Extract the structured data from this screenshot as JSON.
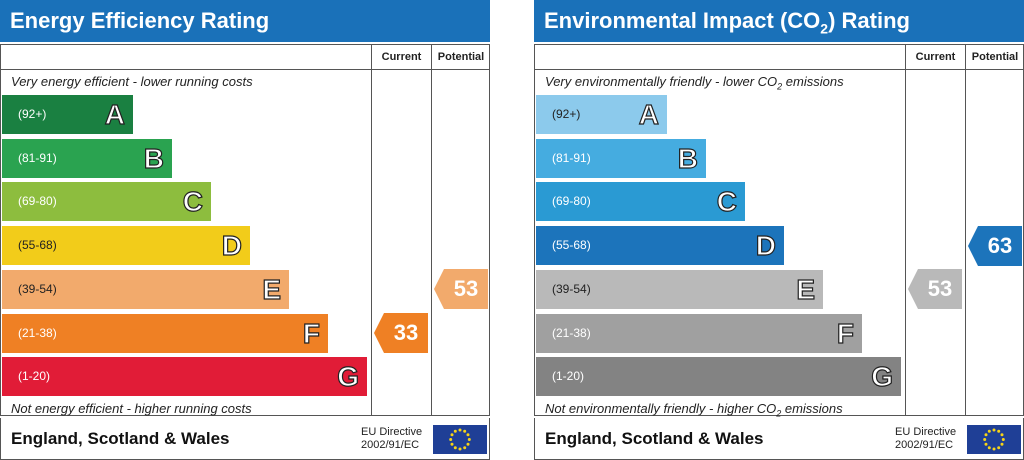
{
  "chart_data": [
    {
      "type": "bar",
      "title": "Energy Efficiency Rating",
      "columns": {
        "current": "Current",
        "potential": "Potential"
      },
      "top_note": "Very energy efficient - lower running costs",
      "bottom_note": "Not energy efficient - higher running costs",
      "bands": [
        {
          "range": "(92+)",
          "letter": "A",
          "color": "#1a8041"
        },
        {
          "range": "(81-91)",
          "letter": "B",
          "color": "#2aa350"
        },
        {
          "range": "(69-80)",
          "letter": "C",
          "color": "#8dbd3e"
        },
        {
          "range": "(55-68)",
          "letter": "D",
          "color": "#f2cc1a"
        },
        {
          "range": "(39-54)",
          "letter": "E",
          "color": "#f2aa6c"
        },
        {
          "range": "(21-38)",
          "letter": "F",
          "color": "#ef8024"
        },
        {
          "range": "(1-20)",
          "letter": "G",
          "color": "#e11c37"
        }
      ],
      "current": {
        "value": 33,
        "band": "F",
        "color": "#ef8024"
      },
      "potential": {
        "value": 53,
        "band": "E",
        "color": "#f2aa6c"
      },
      "region": "England, Scotland & Wales",
      "directive": [
        "EU Directive",
        "2002/91/EC"
      ]
    },
    {
      "type": "bar",
      "title": "Environmental Impact (CO2) Rating",
      "columns": {
        "current": "Current",
        "potential": "Potential"
      },
      "top_note": "Very environmentally friendly - lower CO2 emissions",
      "bottom_note": "Not environmentally friendly - higher CO2 emissions",
      "bands": [
        {
          "range": "(92+)",
          "letter": "A",
          "color": "#8ccaec"
        },
        {
          "range": "(81-91)",
          "letter": "B",
          "color": "#45ace0"
        },
        {
          "range": "(69-80)",
          "letter": "C",
          "color": "#2a9ad3"
        },
        {
          "range": "(55-68)",
          "letter": "D",
          "color": "#1c74bb"
        },
        {
          "range": "(39-54)",
          "letter": "E",
          "color": "#b9b9b9"
        },
        {
          "range": "(21-38)",
          "letter": "F",
          "color": "#a0a0a0"
        },
        {
          "range": "(1-20)",
          "letter": "G",
          "color": "#838383"
        }
      ],
      "current": {
        "value": 53,
        "band": "E",
        "color": "#b9b9b9"
      },
      "potential": {
        "value": 63,
        "band": "D",
        "color": "#1c74bb"
      },
      "region": "England, Scotland & Wales",
      "directive": [
        "EU Directive",
        "2002/91/EC"
      ]
    }
  ]
}
